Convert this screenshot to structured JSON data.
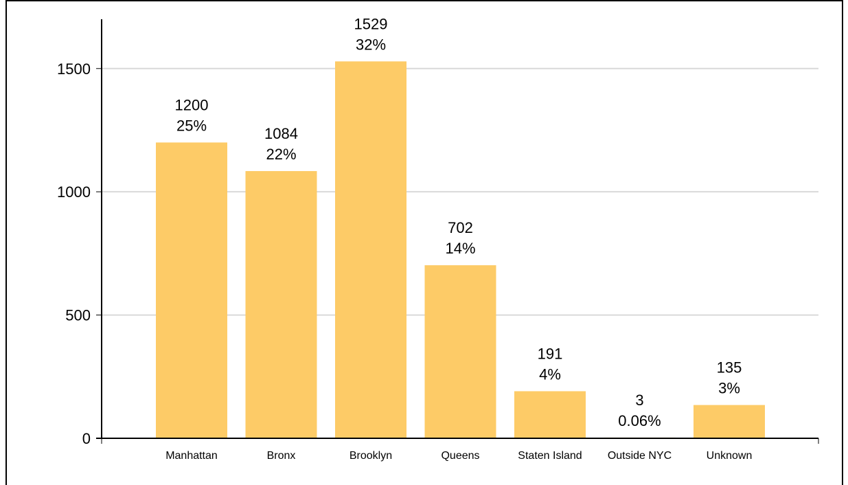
{
  "chart_data": {
    "type": "bar",
    "title": "",
    "xlabel": "",
    "ylabel": "",
    "ylim": [
      0,
      1700
    ],
    "yticks": [
      0,
      500,
      1000,
      1500
    ],
    "grid": true,
    "bar_color": "#FDCB67",
    "categories": [
      "Manhattan",
      "Bronx",
      "Brooklyn",
      "Queens",
      "Staten Island",
      "Outside NYC",
      "Unknown"
    ],
    "values": [
      1200,
      1084,
      1529,
      702,
      191,
      3,
      135
    ],
    "value_labels": [
      "1200",
      "1084",
      "1529",
      "702",
      "191",
      "3",
      "135"
    ],
    "percent_labels": [
      "25%",
      "22%",
      "32%",
      "14%",
      "4%",
      "0.06%",
      "3%"
    ]
  }
}
